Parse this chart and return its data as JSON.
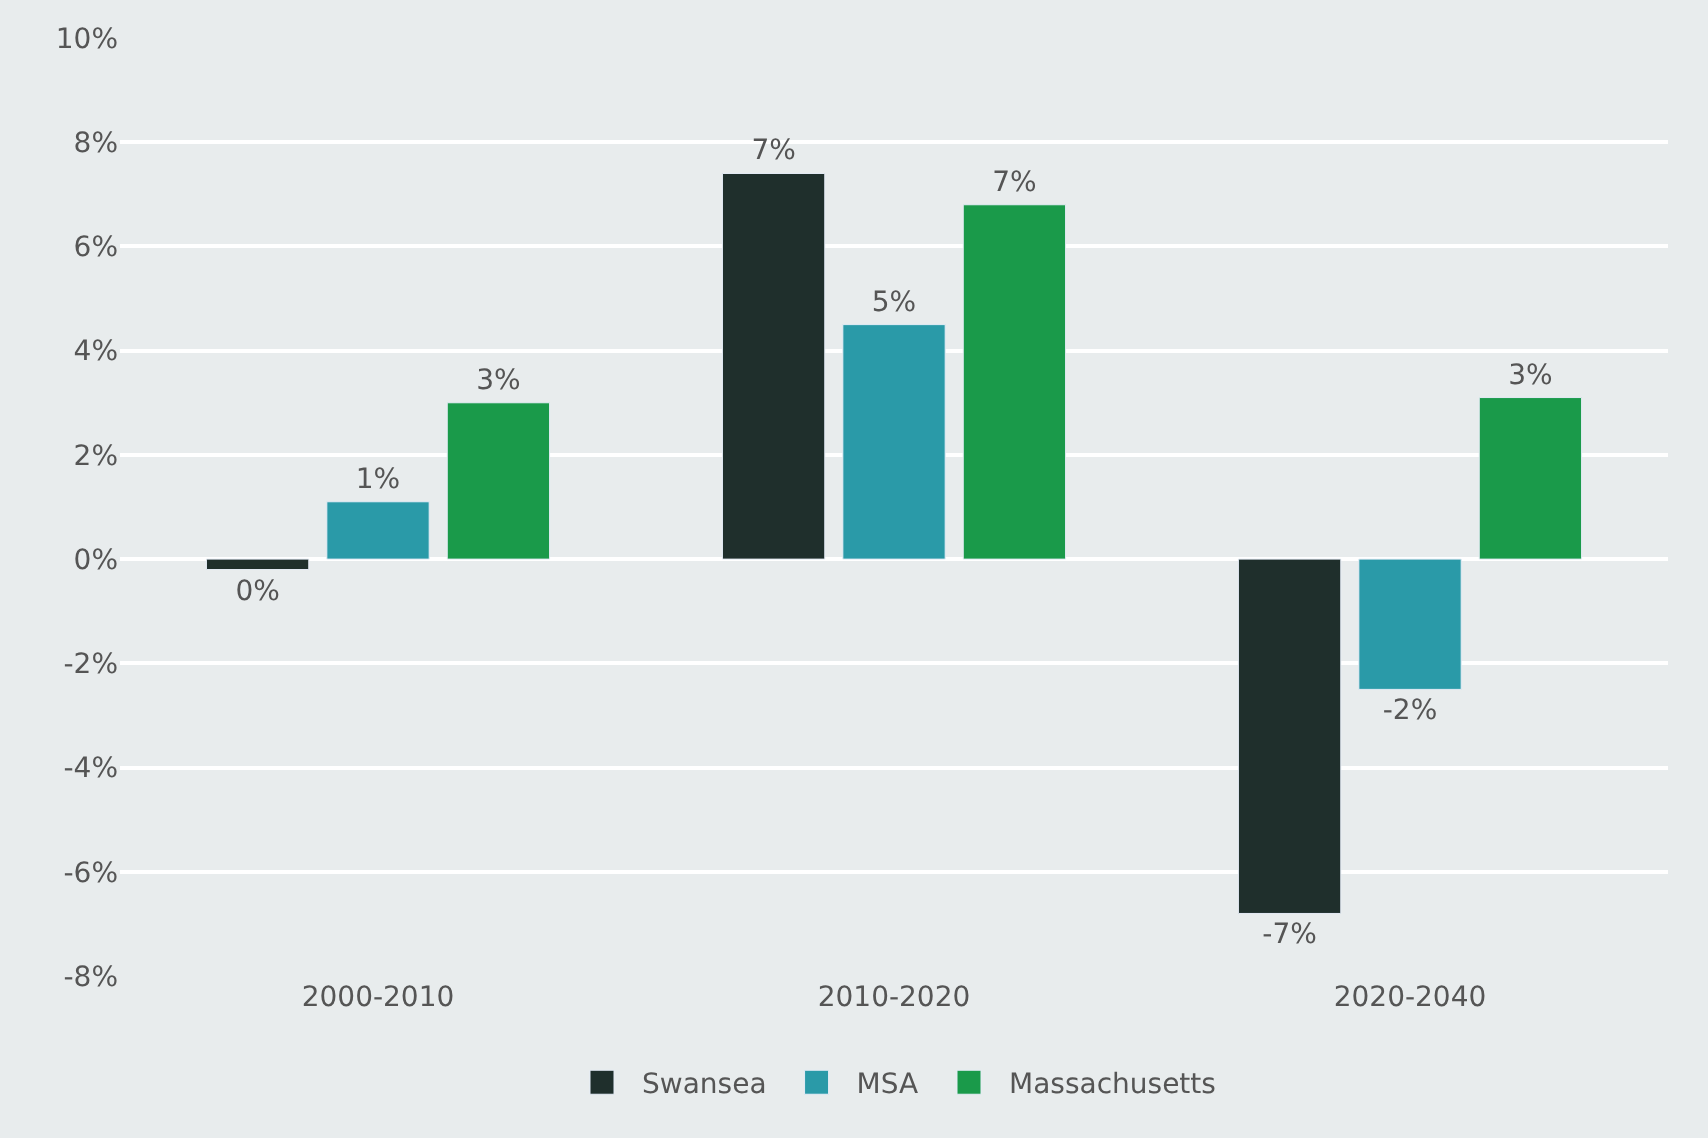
{
  "chart_data": {
    "type": "bar",
    "categories": [
      "2000-2010",
      "2010-2020",
      "2020-2040"
    ],
    "series": [
      {
        "name": "Swansea",
        "color": "#1f2f2c",
        "values": [
          -0.2,
          7.4,
          -6.8
        ],
        "value_labels": [
          "0%",
          "7%",
          "-7%"
        ]
      },
      {
        "name": "MSA",
        "color": "#2a9aa8",
        "values": [
          1.1,
          4.5,
          -2.5
        ],
        "value_labels": [
          "1%",
          "5%",
          "-2%"
        ]
      },
      {
        "name": "Massachusetts",
        "color": "#1a9a4a",
        "values": [
          3.0,
          6.8,
          3.1
        ],
        "value_labels": [
          "3%",
          "7%",
          "3%"
        ]
      }
    ],
    "ylim": [
      -8,
      10
    ],
    "yticks": [
      {
        "value": 10,
        "label": "10%"
      },
      {
        "value": 8,
        "label": "8%"
      },
      {
        "value": 6,
        "label": "6%"
      },
      {
        "value": 4,
        "label": "4%"
      },
      {
        "value": 2,
        "label": "2%"
      },
      {
        "value": 0,
        "label": "0%"
      },
      {
        "value": -2,
        "label": "-2%"
      },
      {
        "value": -4,
        "label": "-4%"
      },
      {
        "value": -6,
        "label": "-6%"
      },
      {
        "value": -8,
        "label": "-8%"
      }
    ],
    "grid": "y",
    "legend": "bottom"
  }
}
